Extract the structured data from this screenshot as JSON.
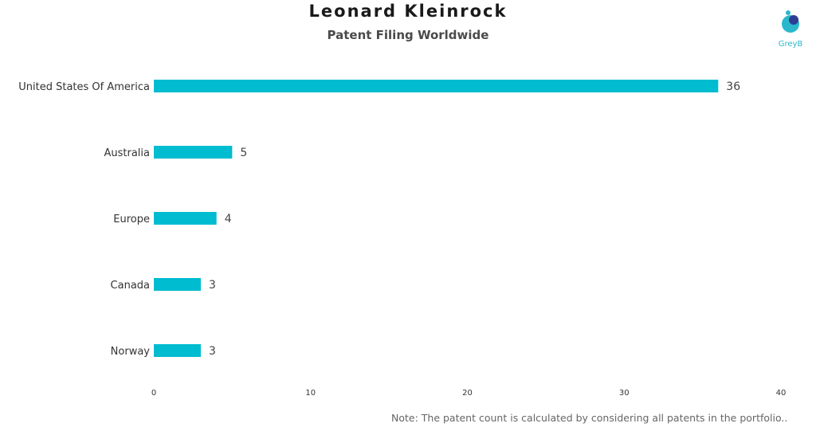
{
  "logo": {
    "text": "GreyB",
    "color": "#2bb8cc"
  },
  "note": "Note: The patent count is calculated by considering all patents in the portfolio..",
  "colors": {
    "bar": "#00bcd0"
  },
  "chart_data": {
    "type": "bar",
    "orientation": "horizontal",
    "title": "Leonard Kleinrock",
    "subtitle": "Patent Filing Worldwide",
    "categories": [
      "United States Of America",
      "Australia",
      "Europe",
      "Canada",
      "Norway"
    ],
    "values": [
      36,
      5,
      4,
      3,
      3
    ],
    "xlim": [
      0,
      40
    ],
    "xticks": [
      0,
      10,
      20,
      30,
      40
    ],
    "grid": false,
    "legend": "none"
  }
}
